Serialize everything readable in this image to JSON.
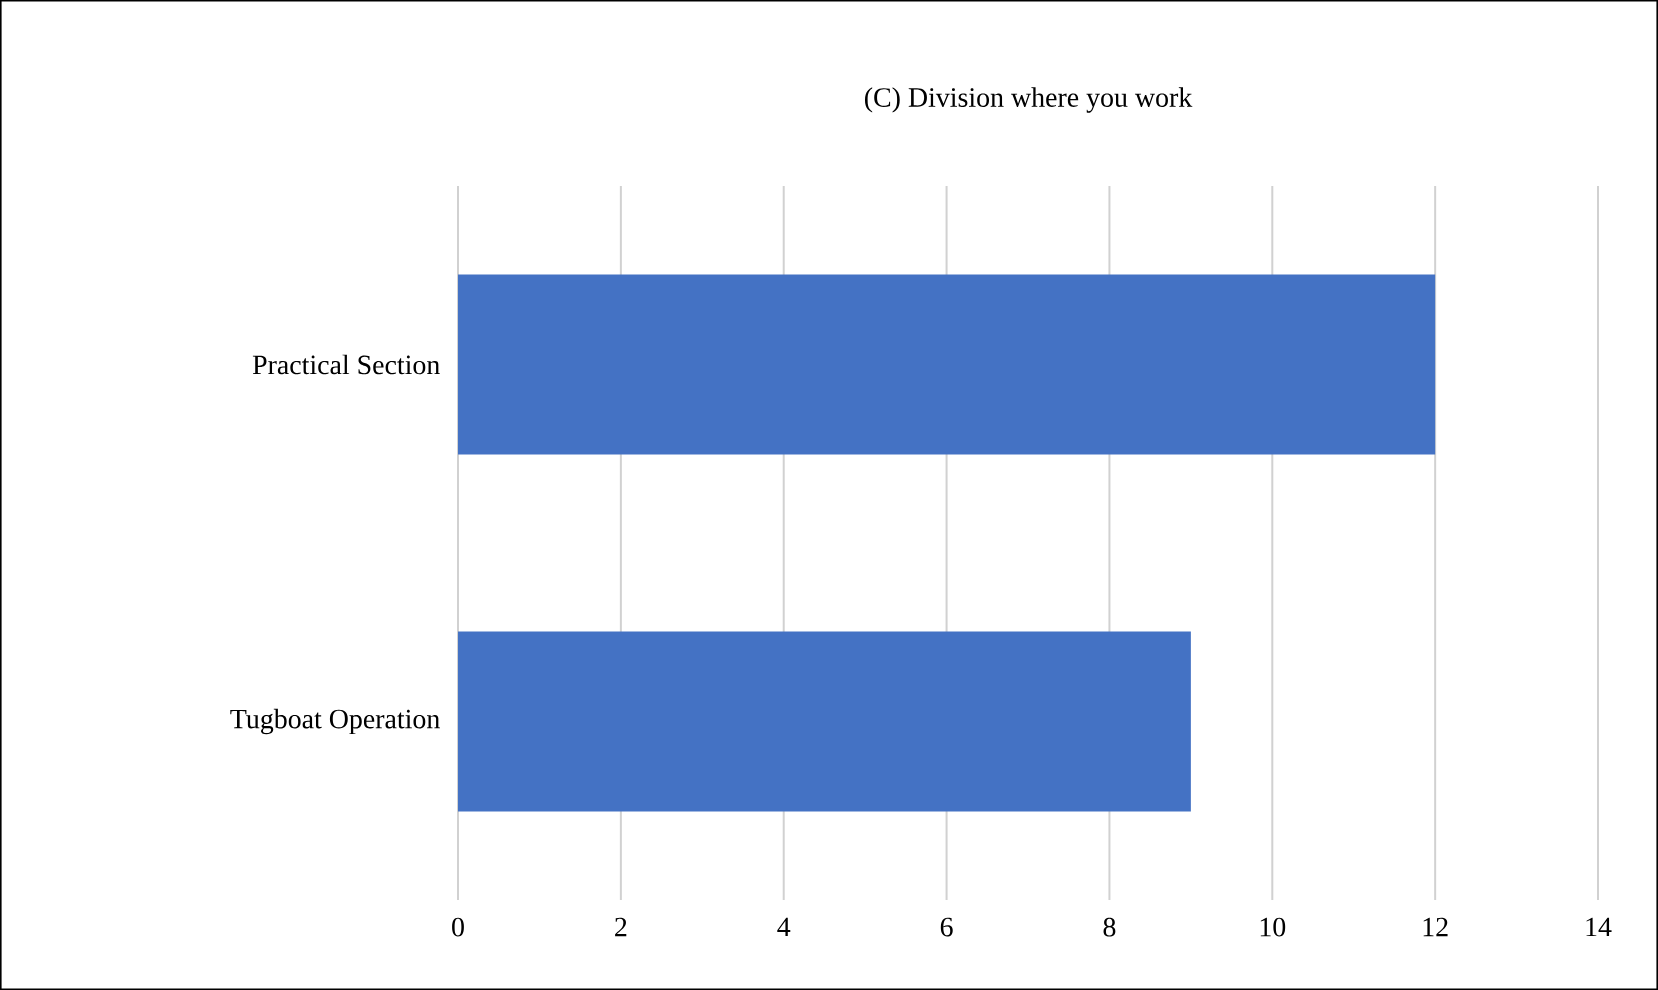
{
  "chart_data": {
    "type": "bar",
    "orientation": "horizontal",
    "title": "(C) Division where you work",
    "categories": [
      "Practical Section",
      "Tugboat Operation"
    ],
    "values": [
      12,
      9
    ],
    "color": "#4472c4",
    "xlim": [
      0,
      14
    ],
    "xticks": [
      0,
      2,
      4,
      6,
      8,
      10,
      12,
      14
    ],
    "grid": "x"
  }
}
